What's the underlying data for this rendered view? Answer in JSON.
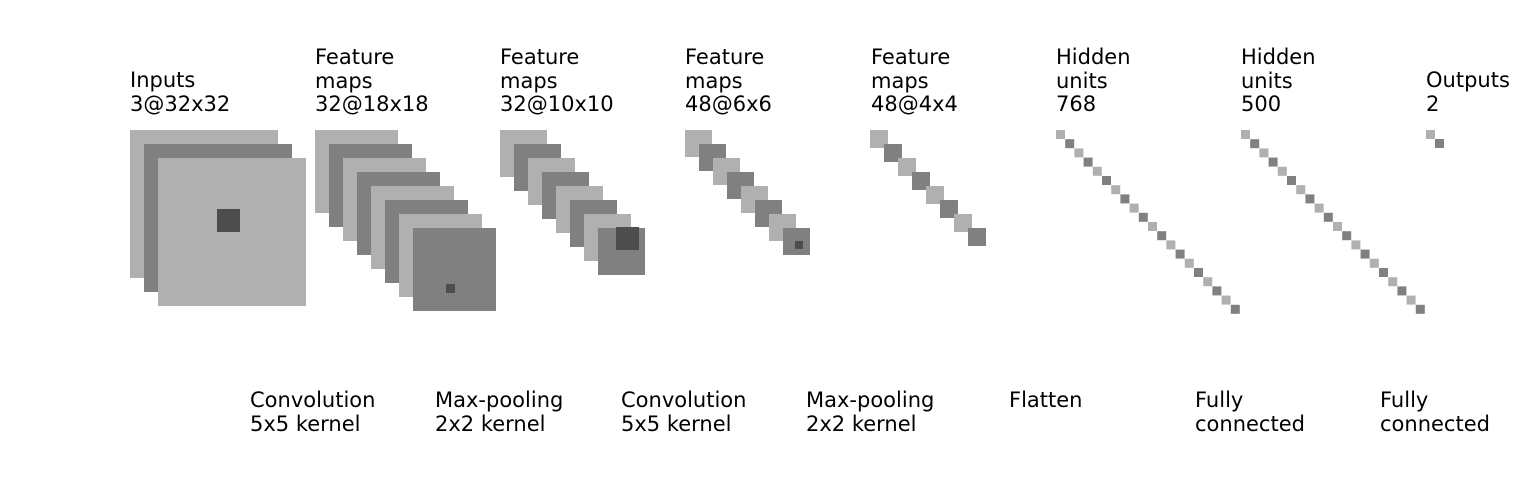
{
  "colors": {
    "light": "#b0b0b0",
    "dark": "#808080",
    "kernel": "#4d4d4d",
    "text": "#000000",
    "background": "#ffffff"
  },
  "layers": [
    {
      "lines": [
        "Inputs",
        "3@32x32"
      ]
    },
    {
      "lines": [
        "Feature",
        "maps",
        "32@18x18"
      ]
    },
    {
      "lines": [
        "Feature",
        "maps",
        "32@10x10"
      ]
    },
    {
      "lines": [
        "Feature",
        "maps",
        "48@6x6"
      ]
    },
    {
      "lines": [
        "Feature",
        "maps",
        "48@4x4"
      ]
    },
    {
      "lines": [
        "Hidden",
        "units",
        "768"
      ]
    },
    {
      "lines": [
        "Hidden",
        "units",
        "500"
      ]
    },
    {
      "lines": [
        "Outputs",
        "2"
      ]
    }
  ],
  "operations": [
    {
      "lines": [
        "Convolution",
        "5x5 kernel"
      ]
    },
    {
      "lines": [
        "Max-pooling",
        "2x2 kernel"
      ]
    },
    {
      "lines": [
        "Convolution",
        "5x5 kernel"
      ]
    },
    {
      "lines": [
        "Max-pooling",
        "2x2 kernel"
      ]
    },
    {
      "lines": [
        "Flatten"
      ]
    },
    {
      "lines": [
        "Fully",
        "connected"
      ]
    },
    {
      "lines": [
        "Fully",
        "connected"
      ]
    }
  ]
}
